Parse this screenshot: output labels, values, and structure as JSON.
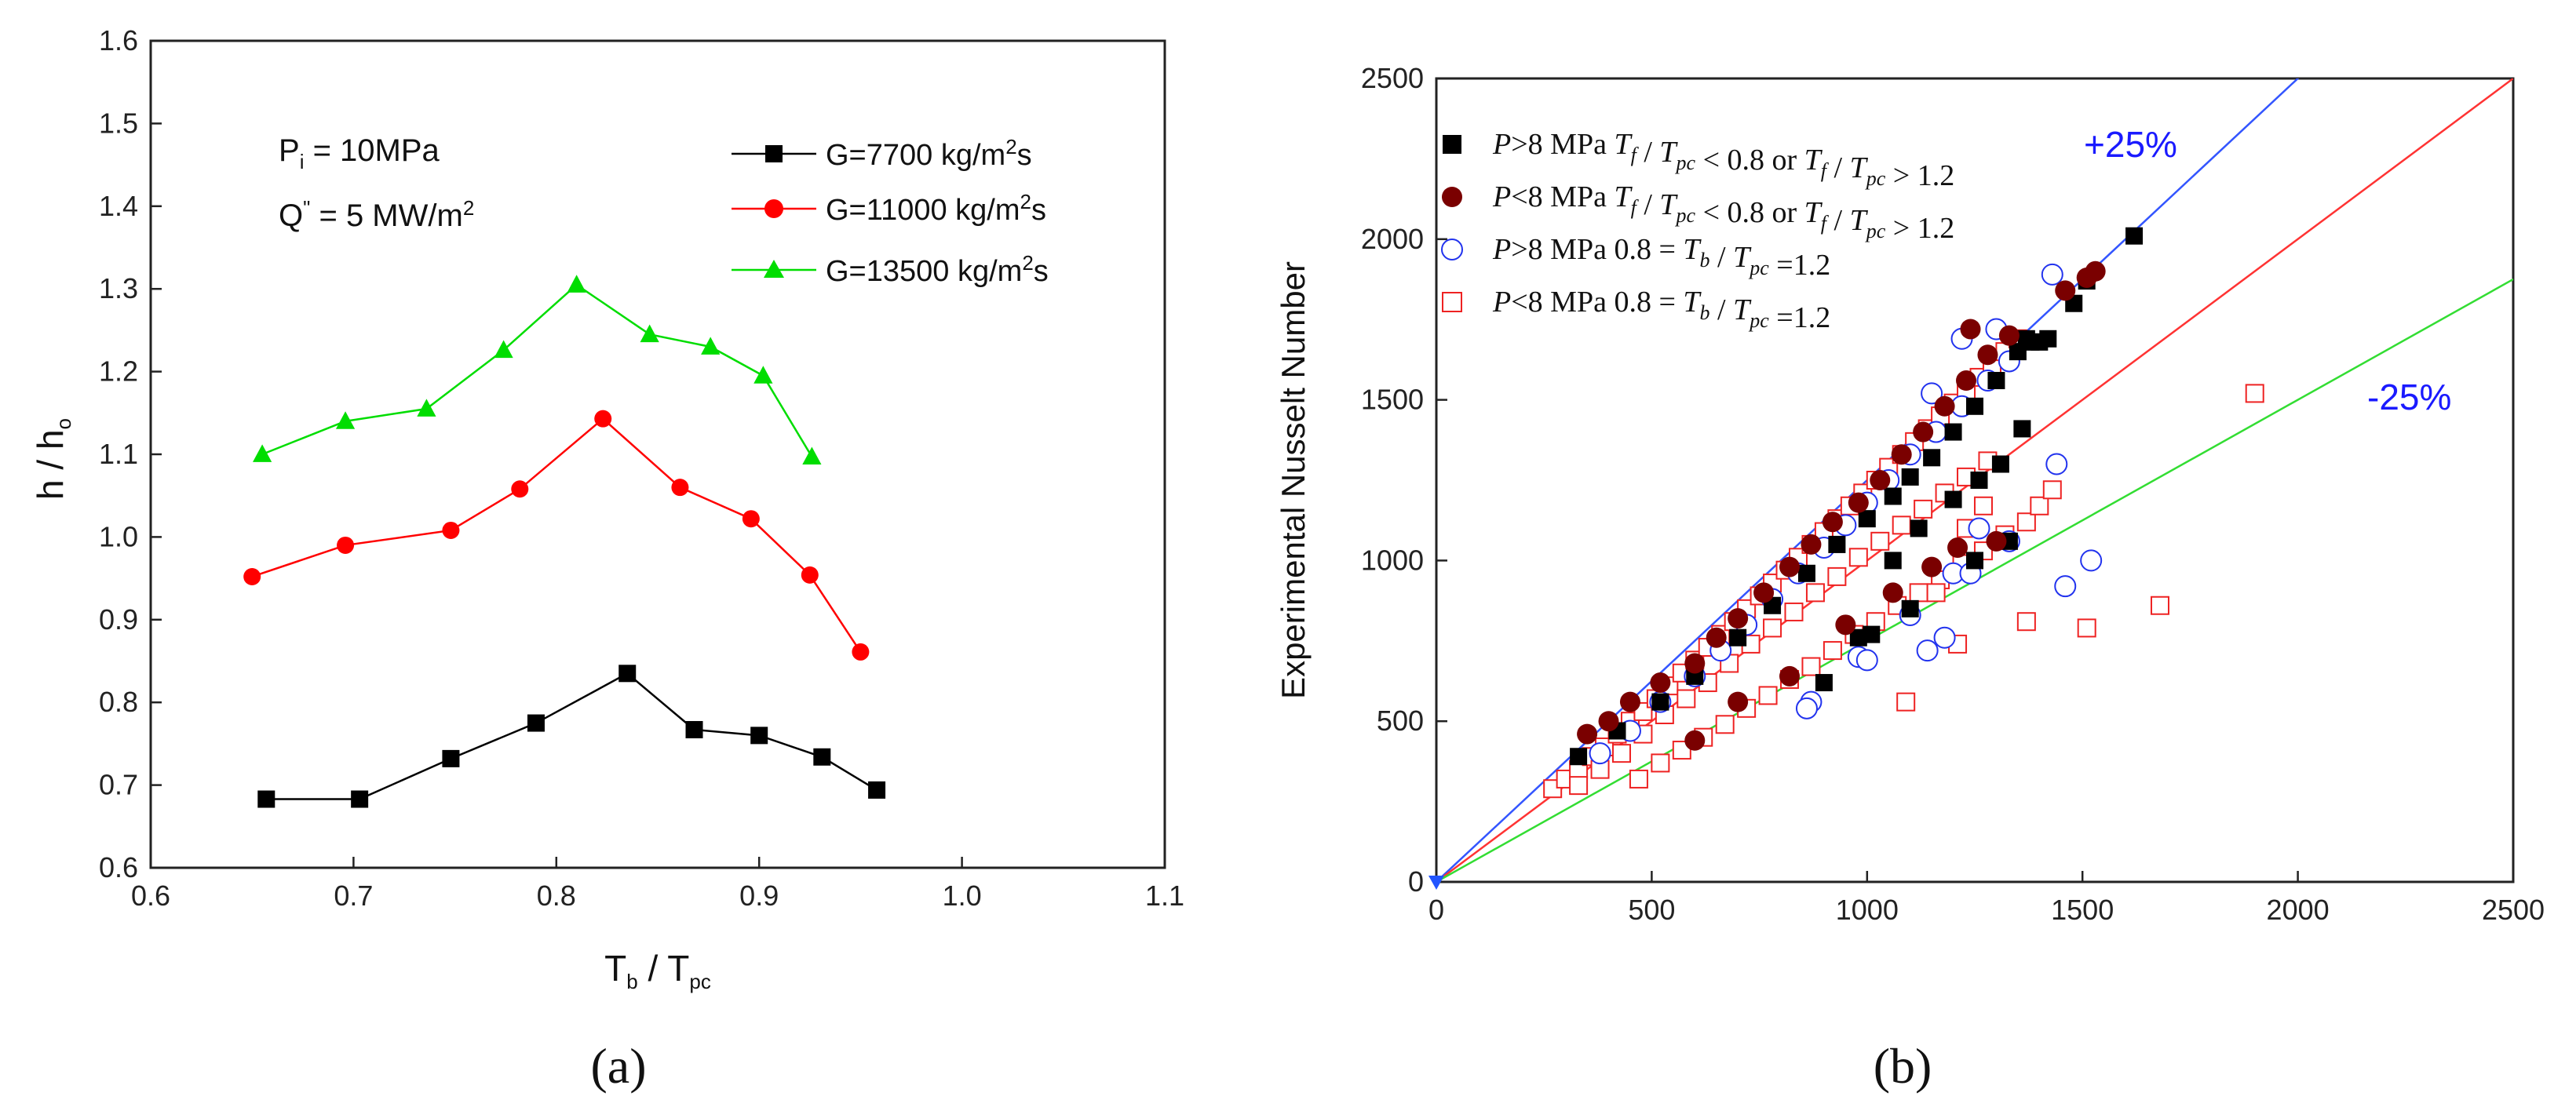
{
  "panel_labels": {
    "a": "(a)",
    "b": "(b)"
  },
  "chart_data": [
    {
      "type": "line",
      "panel": "(a)",
      "xlabel": {
        "main": "T",
        "sub1": "b",
        "mid": " / T",
        "sub2": "pc"
      },
      "ylabel": {
        "main": "h / h",
        "sub": "o"
      },
      "xlim": [
        0.6,
        1.1
      ],
      "ylim": [
        0.6,
        1.6
      ],
      "xticks": [
        "0.6",
        "0.7",
        "0.8",
        "0.9",
        "1.0",
        "1.1"
      ],
      "yticks": [
        "0.6",
        "0.7",
        "0.8",
        "0.9",
        "1.0",
        "1.1",
        "1.2",
        "1.3",
        "1.4",
        "1.5",
        "1.6"
      ],
      "annotations": [
        {
          "main": "P",
          "sub": "i",
          "rest": " = 10MPa"
        },
        {
          "main": "Q",
          "sup": "\"",
          "rest": " = 5 MW/m",
          "sup2": "2"
        }
      ],
      "series": [
        {
          "name": "G=7700 kg/m",
          "sup": "2",
          "tail": "s",
          "color": "#000000",
          "marker": "square",
          "x": [
            0.657,
            0.703,
            0.748,
            0.79,
            0.835,
            0.868,
            0.9,
            0.931,
            0.958
          ],
          "y": [
            0.683,
            0.683,
            0.732,
            0.775,
            0.835,
            0.767,
            0.76,
            0.734,
            0.694
          ]
        },
        {
          "name": "G=11000 kg/m",
          "sup": "2",
          "tail": "s",
          "color": "#ff0000",
          "marker": "circle",
          "x": [
            0.65,
            0.696,
            0.748,
            0.782,
            0.823,
            0.861,
            0.896,
            0.925,
            0.95
          ],
          "y": [
            0.952,
            0.99,
            1.008,
            1.058,
            1.143,
            1.06,
            1.022,
            0.954,
            0.861
          ]
        },
        {
          "name": "G=13500 kg/m",
          "sup": "2",
          "tail": "s",
          "color": "#00dd00",
          "marker": "triangle",
          "x": [
            0.655,
            0.696,
            0.736,
            0.774,
            0.81,
            0.846,
            0.876,
            0.902,
            0.926
          ],
          "y": [
            1.1,
            1.14,
            1.155,
            1.226,
            1.305,
            1.245,
            1.23,
            1.195,
            1.097
          ]
        }
      ]
    },
    {
      "type": "scatter",
      "panel": "(b)",
      "xlabel": "",
      "ylabel": "Experimental Nusselt Number",
      "xlim": [
        0,
        2500
      ],
      "ylim": [
        0,
        2500
      ],
      "xticks": [
        "0",
        "500",
        "1000",
        "1500",
        "2000",
        "2500"
      ],
      "yticks": [
        "0",
        "500",
        "1000",
        "1500",
        "2000",
        "2500"
      ],
      "lines": [
        {
          "name": "+25%",
          "slope": 1.25,
          "color": "#3355ff"
        },
        {
          "name": "equality",
          "slope": 1.0,
          "color": "#ff3333"
        },
        {
          "name": "-25%",
          "slope": 0.75,
          "color": "#33dd33"
        }
      ],
      "annotations": [
        "+25%",
        "-25%"
      ],
      "legend": [
        {
          "marker": "square",
          "color": "#000000",
          "fill": true,
          "parts": [
            "P",
            ">8 MPa   ",
            "T",
            "f",
            " / ",
            "T",
            "pc",
            " < 0.8 or  ",
            "T",
            "f",
            " / ",
            "T",
            "pc",
            " > 1.2"
          ]
        },
        {
          "marker": "circle",
          "color": "#7a0000",
          "fill": true,
          "parts": [
            "P",
            "<8 MPa   ",
            "T",
            "f",
            " / ",
            "T",
            "pc",
            " < 0.8 or  ",
            "T",
            "f",
            " / ",
            "T",
            "pc",
            " > 1.2"
          ]
        },
        {
          "marker": "circle",
          "color": "#2233ee",
          "fill": false,
          "parts": [
            "P",
            ">8 MPa   0.8 = ",
            "T",
            "b",
            " / ",
            "T",
            "pc",
            " =1.2"
          ]
        },
        {
          "marker": "square",
          "color": "#ee2222",
          "fill": false,
          "parts": [
            "P",
            "<8 MPa    0.8 = ",
            "T",
            "b",
            " / ",
            "T",
            "pc",
            " =1.2"
          ]
        }
      ],
      "series": [
        {
          "name": "P>8 MPa Tf/Tpc<0.8 or Tf/Tpc>1.2",
          "marker": "square",
          "fill": true,
          "color": "#000000",
          "x": [
            330,
            420,
            520,
            600,
            700,
            780,
            860,
            930,
            1000,
            1060,
            1100,
            1150,
            1200,
            1250,
            1300,
            1350,
            1380,
            1420,
            1480,
            1510,
            1620,
            1060,
            1120,
            1200,
            1260,
            1310,
            1360,
            900,
            980,
            1010,
            1100,
            1250,
            1330,
            1370,
            1400
          ],
          "y": [
            390,
            470,
            560,
            640,
            760,
            860,
            960,
            1050,
            1130,
            1200,
            1260,
            1320,
            1400,
            1480,
            1560,
            1650,
            1680,
            1690,
            1800,
            1870,
            2010,
            1000,
            1100,
            1190,
            1250,
            1300,
            1410,
            620,
            760,
            770,
            850,
            1000,
            1060,
            1690,
            1680
          ]
        },
        {
          "name": "P<8 MPa Tf/Tpc<0.8 or Tf/Tpc>1.2",
          "marker": "circle",
          "fill": true,
          "color": "#7a0000",
          "x": [
            350,
            400,
            450,
            520,
            600,
            650,
            700,
            760,
            820,
            870,
            920,
            980,
            1030,
            1080,
            1130,
            1180,
            1230,
            1280,
            1330,
            1460,
            1510,
            1530,
            600,
            700,
            820,
            950,
            1060,
            1150,
            1210,
            1300,
            1240
          ],
          "y": [
            460,
            500,
            560,
            620,
            680,
            760,
            820,
            900,
            980,
            1050,
            1120,
            1180,
            1250,
            1330,
            1400,
            1480,
            1560,
            1640,
            1700,
            1840,
            1880,
            1900,
            440,
            560,
            640,
            800,
            900,
            980,
            1040,
            1060,
            1720
          ]
        },
        {
          "name": "P>8 MPa 0.8=Tb/Tpc=1.2",
          "marker": "circle",
          "fill": false,
          "color": "#2233ee",
          "x": [
            380,
            450,
            520,
            600,
            660,
            720,
            780,
            840,
            900,
            950,
            1000,
            1050,
            1100,
            1160,
            1220,
            1280,
            1330,
            1430,
            1440,
            870,
            980,
            1100,
            1200,
            1260,
            1330,
            1460,
            1520,
            860,
            1000,
            1140,
            1180,
            1240,
            1300,
            1150,
            1220
          ],
          "y": [
            400,
            470,
            560,
            640,
            720,
            800,
            880,
            960,
            1040,
            1110,
            1180,
            1250,
            1330,
            1400,
            1480,
            1560,
            1620,
            1890,
            1300,
            560,
            700,
            830,
            960,
            1100,
            1060,
            920,
            1000,
            540,
            690,
            720,
            760,
            960,
            1720,
            1520,
            1690
          ]
        },
        {
          "name": "P<8 MPa 0.8=Tb/Tpc=1.2",
          "marker": "square",
          "fill": false,
          "color": "#ee2222",
          "x": [
            270,
            300,
            330,
            360,
            390,
            420,
            450,
            480,
            510,
            540,
            570,
            600,
            630,
            660,
            690,
            720,
            750,
            780,
            810,
            840,
            870,
            900,
            930,
            960,
            990,
            1020,
            1050,
            1080,
            1110,
            1140,
            1170,
            1200,
            1230,
            1260,
            1290,
            1320,
            1350,
            330,
            380,
            430,
            480,
            530,
            580,
            630,
            680,
            730,
            780,
            830,
            880,
            930,
            980,
            1030,
            1080,
            1130,
            1180,
            1230,
            1280,
            470,
            520,
            570,
            620,
            670,
            720,
            770,
            820,
            870,
            920,
            970,
            1020,
            1070,
            1120,
            1170,
            1220,
            1270,
            1320,
            1370,
            1400,
            1430,
            1370,
            1510,
            1680,
            1900,
            1090,
            1160,
            1230,
            1210,
            1270
          ],
          "y": [
            290,
            320,
            350,
            390,
            420,
            460,
            500,
            530,
            570,
            610,
            650,
            690,
            730,
            770,
            810,
            850,
            890,
            930,
            970,
            1010,
            1050,
            1090,
            1130,
            1170,
            1210,
            1250,
            1290,
            1330,
            1370,
            1410,
            1450,
            1490,
            1530,
            1570,
            1610,
            1650,
            1690,
            300,
            350,
            400,
            460,
            520,
            570,
            620,
            680,
            740,
            790,
            840,
            900,
            950,
            1010,
            1060,
            1110,
            1160,
            1210,
            1260,
            1310,
            320,
            370,
            410,
            450,
            490,
            540,
            580,
            630,
            670,
            720,
            770,
            810,
            860,
            900,
            940,
            990,
            1030,
            1080,
            1120,
            1170,
            1220,
            810,
            790,
            860,
            1520,
            560,
            900,
            1100,
            740,
            1170
          ]
        }
      ]
    }
  ]
}
